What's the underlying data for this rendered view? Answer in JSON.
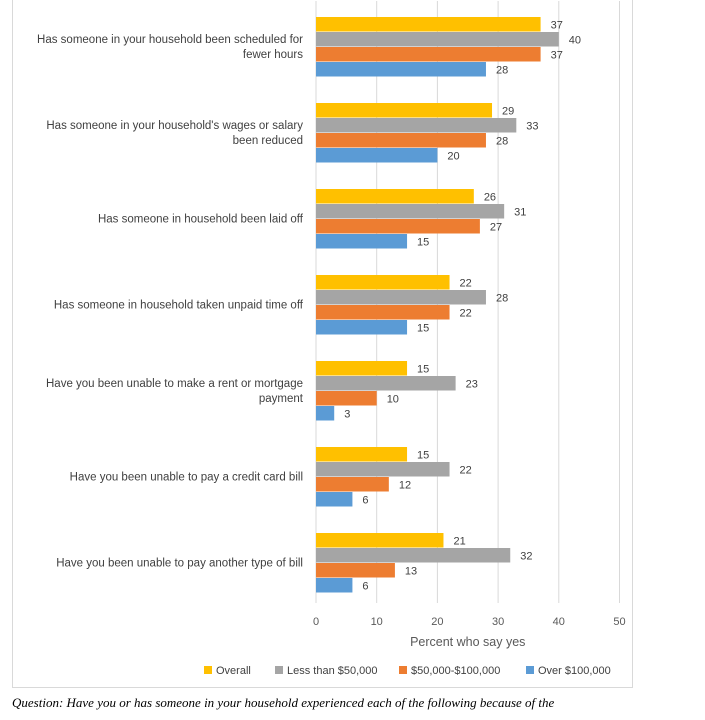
{
  "chart_data": {
    "type": "bar",
    "orientation": "horizontal",
    "categories": [
      [
        "Has someone in your household been scheduled for",
        "fewer hours"
      ],
      [
        "Has someone in your household's wages or salary",
        "been reduced"
      ],
      [
        "Has someone in household been laid off"
      ],
      [
        "Has someone in household taken unpaid time off"
      ],
      [
        "Have you been unable to make a rent or mortgage",
        "payment"
      ],
      [
        "Have you been unable to pay a credit card bill"
      ],
      [
        "Have you been unable to pay another type of bill"
      ]
    ],
    "series": [
      {
        "name": "Overall",
        "color": "#FFC000",
        "values": [
          37,
          29,
          26,
          22,
          15,
          15,
          21
        ]
      },
      {
        "name": "Less than $50,000",
        "color": "#A5A5A5",
        "values": [
          40,
          33,
          31,
          28,
          23,
          22,
          32
        ]
      },
      {
        "name": "$50,000-$100,000",
        "color": "#ED7D31",
        "values": [
          37,
          28,
          27,
          22,
          10,
          12,
          13
        ]
      },
      {
        "name": "Over $100,000",
        "color": "#5B9BD5",
        "values": [
          28,
          20,
          15,
          15,
          3,
          6,
          6
        ]
      }
    ],
    "xlabel": "Percent who say yes",
    "xlim": [
      0,
      50
    ],
    "xticks": [
      0,
      10,
      20,
      30,
      40,
      50
    ],
    "grid": true,
    "legend_position": "bottom"
  },
  "caption": "Question: Have you or has someone in your household experienced each of the following because of the"
}
